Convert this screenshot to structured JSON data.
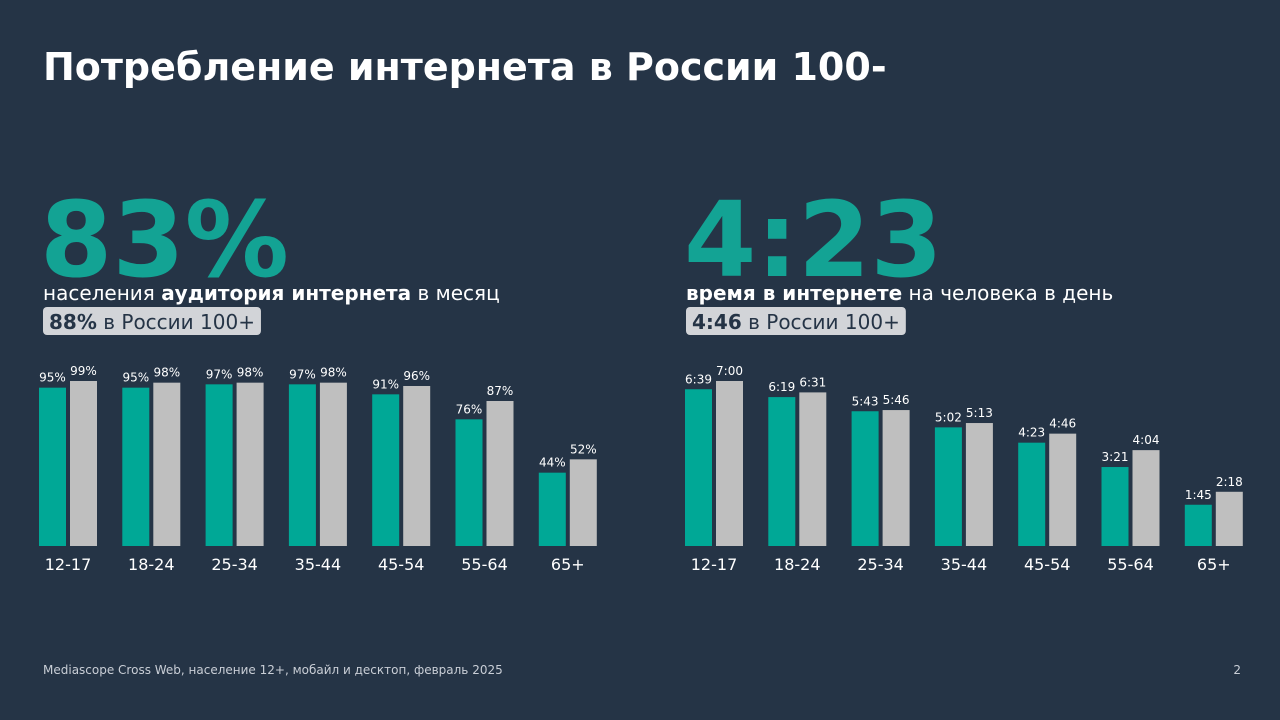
{
  "title": "Потребление интернета в России 100-",
  "kpis": [
    {
      "value": "83%",
      "caption": [
        "населения ",
        "аудитория интернета",
        " в месяц"
      ],
      "badge": [
        "88%",
        " в России 100+"
      ]
    },
    {
      "value": "4:23",
      "caption": [
        "время в интернете",
        " на человека в день"
      ],
      "badge": [
        "4:46",
        " в России 100+"
      ]
    }
  ],
  "chart_data": [
    {
      "type": "bar",
      "categories": [
        "12-17",
        "18-24",
        "25-34",
        "35-44",
        "45-54",
        "55-64",
        "65+"
      ],
      "series": [
        {
          "color": "#00a896",
          "values": [
            95,
            95,
            97,
            97,
            91,
            76,
            44
          ],
          "value_labels": [
            "95%",
            "95%",
            "97%",
            "97%",
            "91%",
            "76%",
            "44%"
          ]
        },
        {
          "color": "#bfbfbf",
          "values": [
            99,
            98,
            98,
            98,
            96,
            87,
            52
          ],
          "value_labels": [
            "99%",
            "98%",
            "98%",
            "98%",
            "96%",
            "87%",
            "52%"
          ]
        }
      ]
    },
    {
      "type": "bar",
      "categories": [
        "12-17",
        "18-24",
        "25-34",
        "35-44",
        "45-54",
        "55-64",
        "65+"
      ],
      "series": [
        {
          "color": "#00a896",
          "values": [
            399,
            379,
            343,
            302,
            263,
            201,
            105
          ],
          "value_labels": [
            "6:39",
            "6:19",
            "5:43",
            "5:02",
            "4:23",
            "3:21",
            "1:45"
          ]
        },
        {
          "color": "#bfbfbf",
          "values": [
            420,
            391,
            346,
            313,
            286,
            244,
            138
          ],
          "value_labels": [
            "7:00",
            "6:31",
            "5:46",
            "5:13",
            "4:46",
            "4:04",
            "2:18"
          ]
        }
      ]
    }
  ],
  "footer": "Mediascope Cross Web, население 12+, мобайл и десктоп, февраль 2025",
  "page_number": "2"
}
